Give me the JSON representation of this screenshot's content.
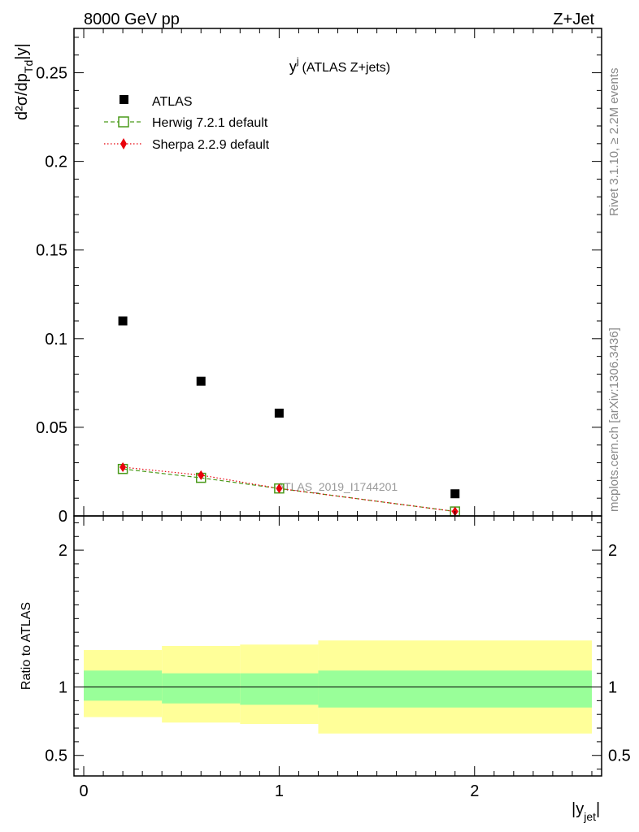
{
  "header": {
    "left": "8000 GeV pp",
    "right": "Z+Jet"
  },
  "side_text": {
    "rivet": "Rivet 3.1.10, ≥ 2.2M events",
    "mcplots": "mcplots.cern.ch [arXiv:1306.3436]"
  },
  "watermark": "ATLAS_2019_I1744201",
  "colors": {
    "atlas": "#000000",
    "herwig": "#4a9a1a",
    "sherpa": "#e8000b",
    "band_inner": "#99ff99",
    "band_outer": "#ffff99"
  },
  "chart_data": [
    {
      "type": "scatter",
      "title_main": "y",
      "title_sup": "j",
      "title_rest": "(ATLAS Z+jets)",
      "ylabel_main": "d²σ/dp",
      "ylabel_sub": "Td",
      "ylabel_tail": "|y|",
      "ylim": [
        0,
        0.275
      ],
      "xlim": [
        -0.05,
        2.65
      ],
      "x_ticks": [
        "0",
        "1",
        "2"
      ],
      "y_ticks": [
        "0",
        "0.05",
        "0.1",
        "0.15",
        "0.2",
        "0.25"
      ],
      "legend_position": "top-left",
      "series": [
        {
          "name": "ATLAS",
          "marker": "square-filled",
          "x": [
            0.2,
            0.6,
            1.0,
            1.9
          ],
          "y": [
            0.11,
            0.076,
            0.058,
            0.0125
          ]
        },
        {
          "name": "Herwig 7.2.1 default",
          "marker": "square-open",
          "line": "dashed",
          "x": [
            0.2,
            0.6,
            1.0,
            1.9
          ],
          "y": [
            0.0265,
            0.0215,
            0.0155,
            0.0025
          ]
        },
        {
          "name": "Sherpa 2.2.9 default",
          "marker": "diamond",
          "line": "dotted",
          "x": [
            0.2,
            0.6,
            1.0,
            1.9
          ],
          "y": [
            0.0275,
            0.023,
            0.0155,
            0.0025
          ]
        }
      ]
    },
    {
      "type": "area",
      "ylabel": "Ratio to ATLAS",
      "xlabel_main": "|y",
      "xlabel_sub": "jet",
      "xlabel_tail": "|",
      "ylim": [
        0.35,
        2.25
      ],
      "xlim": [
        -0.05,
        2.65
      ],
      "x_ticks": [
        "0",
        "1",
        "2"
      ],
      "y_ticks": [
        "0.5",
        "1",
        "2"
      ],
      "reference": 1.0,
      "bins": [
        {
          "xlo": 0.0,
          "xhi": 0.4,
          "inner": [
            0.9,
            1.12
          ],
          "outer": [
            0.78,
            1.27
          ]
        },
        {
          "xlo": 0.4,
          "xhi": 0.8,
          "inner": [
            0.88,
            1.1
          ],
          "outer": [
            0.74,
            1.3
          ]
        },
        {
          "xlo": 0.8,
          "xhi": 1.2,
          "inner": [
            0.87,
            1.1
          ],
          "outer": [
            0.73,
            1.31
          ]
        },
        {
          "xlo": 1.2,
          "xhi": 2.6,
          "inner": [
            0.85,
            1.12
          ],
          "outer": [
            0.66,
            1.34
          ]
        }
      ]
    }
  ]
}
